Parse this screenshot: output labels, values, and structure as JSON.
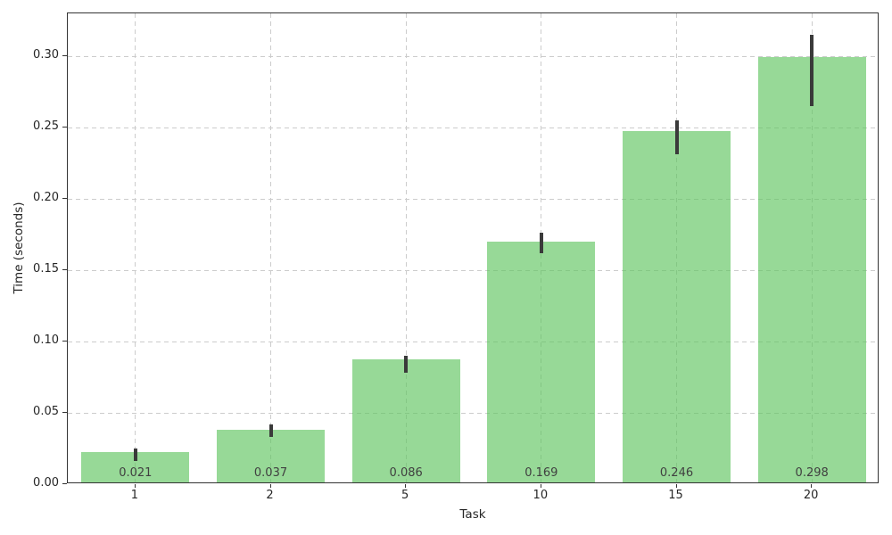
{
  "chart_data": {
    "type": "bar",
    "title": "",
    "xlabel": "Task",
    "ylabel": "Time (seconds)",
    "categories": [
      "1",
      "2",
      "5",
      "10",
      "15",
      "20"
    ],
    "values": [
      0.021,
      0.037,
      0.086,
      0.169,
      0.246,
      0.298
    ],
    "bar_labels": [
      "0.021",
      "0.037",
      "0.086",
      "0.169",
      "0.246",
      "0.298"
    ],
    "error_ranges": [
      [
        0.016,
        0.025
      ],
      [
        0.033,
        0.042
      ],
      [
        0.078,
        0.09
      ],
      [
        0.162,
        0.176
      ],
      [
        0.231,
        0.255
      ],
      [
        0.265,
        0.315
      ]
    ],
    "ylim": [
      0,
      0.33
    ],
    "yticks": [
      0,
      0.05,
      0.1,
      0.15,
      0.2,
      0.25,
      0.3
    ],
    "ytick_labels": [
      "0.00",
      "0.05",
      "0.10",
      "0.15",
      "0.20",
      "0.25",
      "0.30"
    ],
    "grid": true,
    "grid_style": "dashed",
    "legend_position": "none",
    "bar_width_fraction": 0.8,
    "colors": {
      "bar_fill": "#60C560A6",
      "error_bar": "#3A3A3A",
      "grid": "#CCCCCC",
      "bar_label_text": "#404040",
      "tick_text": "#262626",
      "spine": "#333333",
      "background": "#FFFFFF"
    }
  }
}
